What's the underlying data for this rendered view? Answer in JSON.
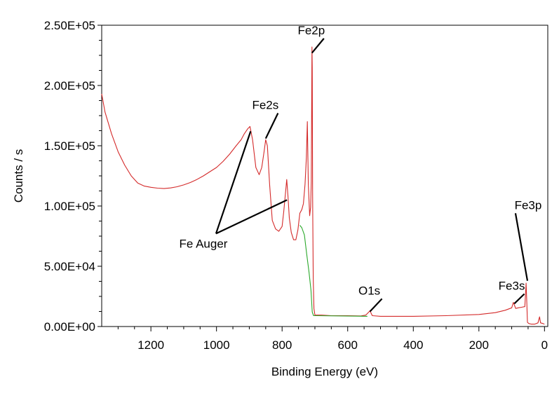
{
  "chart_data": {
    "type": "line",
    "title": "",
    "xlabel": "Binding Energy (eV)",
    "ylabel": "Counts / s",
    "xlim": [
      1350,
      -10
    ],
    "ylim": [
      0,
      250000
    ],
    "x_reversed": true,
    "x_ticks": [
      1200,
      1000,
      800,
      600,
      400,
      200,
      0
    ],
    "x_tick_labels": [
      "1200",
      "1000",
      "800",
      "600",
      "400",
      "200",
      "0"
    ],
    "y_ticks": [
      0,
      50000,
      100000,
      150000,
      200000,
      250000
    ],
    "y_tick_labels": [
      "0.00E+00",
      "5.00E+04",
      "1.00E+05",
      "1.50E+05",
      "2.00E+05",
      "2.50E+05"
    ],
    "grid": false,
    "colors": {
      "spectrum": "#d42a2a",
      "background": "#2aa82a"
    },
    "series": [
      {
        "color": "#d42a2a",
        "points": [
          [
            1350,
            193000
          ],
          [
            1340,
            178000
          ],
          [
            1320,
            160000
          ],
          [
            1300,
            145000
          ],
          [
            1280,
            134000
          ],
          [
            1260,
            125000
          ],
          [
            1240,
            119000
          ],
          [
            1220,
            116500
          ],
          [
            1200,
            115500
          ],
          [
            1180,
            114800
          ],
          [
            1160,
            114500
          ],
          [
            1140,
            115000
          ],
          [
            1120,
            116000
          ],
          [
            1100,
            117500
          ],
          [
            1080,
            119500
          ],
          [
            1060,
            122000
          ],
          [
            1040,
            125000
          ],
          [
            1020,
            128500
          ],
          [
            1000,
            132000
          ],
          [
            980,
            137000
          ],
          [
            960,
            143000
          ],
          [
            940,
            150000
          ],
          [
            925,
            155000
          ],
          [
            915,
            160000
          ],
          [
            905,
            164000
          ],
          [
            898,
            166000
          ],
          [
            890,
            155000
          ],
          [
            880,
            132000
          ],
          [
            870,
            126000
          ],
          [
            862,
            132000
          ],
          [
            855,
            145000
          ],
          [
            850,
            155000
          ],
          [
            845,
            150000
          ],
          [
            838,
            118000
          ],
          [
            830,
            88000
          ],
          [
            820,
            81000
          ],
          [
            810,
            79000
          ],
          [
            800,
            83000
          ],
          [
            795,
            95000
          ],
          [
            790,
            110000
          ],
          [
            786,
            122000
          ],
          [
            782,
            108000
          ],
          [
            778,
            90000
          ],
          [
            772,
            78000
          ],
          [
            765,
            72000
          ],
          [
            758,
            72000
          ],
          [
            752,
            80000
          ],
          [
            746,
            94000
          ],
          [
            740,
            97000
          ],
          [
            735,
            102000
          ],
          [
            730,
            118000
          ],
          [
            726,
            140000
          ],
          [
            723,
            170000
          ],
          [
            720,
            118000
          ],
          [
            716,
            92000
          ],
          [
            713,
            99000
          ],
          [
            711,
            120000
          ],
          [
            710,
            175000
          ],
          [
            709,
            232000
          ],
          [
            708,
            215000
          ],
          [
            707,
            110000
          ],
          [
            705,
            40000
          ],
          [
            703,
            15000
          ],
          [
            700,
            9500
          ],
          [
            680,
            9500
          ],
          [
            650,
            9000
          ],
          [
            600,
            9000
          ],
          [
            560,
            8800
          ],
          [
            545,
            9500
          ],
          [
            532,
            13000
          ],
          [
            525,
            9000
          ],
          [
            500,
            8500
          ],
          [
            400,
            8500
          ],
          [
            300,
            9000
          ],
          [
            200,
            10000
          ],
          [
            150,
            11500
          ],
          [
            120,
            13500
          ],
          [
            100,
            15500
          ],
          [
            95,
            20000
          ],
          [
            92,
            18000
          ],
          [
            88,
            15000
          ],
          [
            80,
            15500
          ],
          [
            70,
            16000
          ],
          [
            60,
            16500
          ],
          [
            56,
            36000
          ],
          [
            54,
            20000
          ],
          [
            52,
            3500
          ],
          [
            48,
            2500
          ],
          [
            40,
            2000
          ],
          [
            30,
            2000
          ],
          [
            20,
            3000
          ],
          [
            15,
            8000
          ],
          [
            12,
            3000
          ],
          [
            5,
            2500
          ],
          [
            0,
            2000
          ]
        ]
      },
      {
        "color": "#2aa82a",
        "points": [
          [
            746,
            84000
          ],
          [
            740,
            82000
          ],
          [
            732,
            76000
          ],
          [
            725,
            60000
          ],
          [
            718,
            45000
          ],
          [
            712,
            30000
          ],
          [
            708,
            12000
          ],
          [
            704,
            9000
          ],
          [
            700,
            9000
          ],
          [
            540,
            8500
          ]
        ]
      }
    ],
    "annotations": [
      {
        "text": "Fe2p",
        "x": 711,
        "y": 246000,
        "to": [
          [
            709,
            227000
          ]
        ]
      },
      {
        "text": "Fe2s",
        "x": 851,
        "y": 184000,
        "to": [
          [
            850,
            156000
          ]
        ]
      },
      {
        "text": "Fe Auger",
        "x": 1040,
        "y": 69000,
        "to": [
          [
            896,
            162000
          ],
          [
            785,
            105000
          ]
        ]
      },
      {
        "text": "Fe3p",
        "x": 50,
        "y": 101000,
        "to": [
          [
            52,
            38000
          ]
        ]
      },
      {
        "text": "Fe3s",
        "x": 100,
        "y": 34000,
        "to": [
          [
            92,
            19000
          ]
        ]
      },
      {
        "text": "O1s",
        "x": 534,
        "y": 30000,
        "to": [
          [
            532,
            12500
          ]
        ]
      }
    ]
  }
}
